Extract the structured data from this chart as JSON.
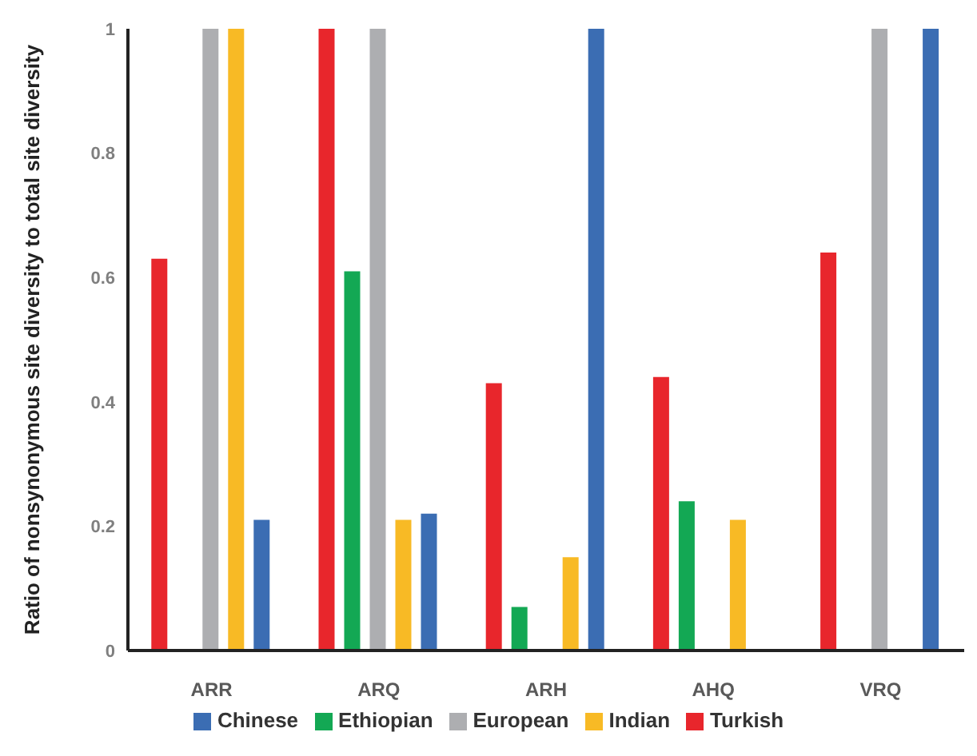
{
  "chart_data": {
    "type": "bar",
    "ylabel": "Ratio of nonsynonymous site diversity to total site diversity",
    "categories": [
      "ARR",
      "ARQ",
      "ARH",
      "AHQ",
      "VRQ"
    ],
    "series": [
      {
        "name": "Turkish",
        "color": "#e8262c",
        "values": [
          0.63,
          1,
          0.43,
          0.44,
          0.64
        ]
      },
      {
        "name": "Ethiopian",
        "color": "#13a854",
        "values": [
          null,
          0.61,
          0.07,
          0.24,
          null
        ]
      },
      {
        "name": "European",
        "color": "#adaeb1",
        "values": [
          1,
          1,
          null,
          null,
          1
        ]
      },
      {
        "name": "Indian",
        "color": "#f8ba25",
        "values": [
          1,
          0.21,
          0.15,
          0.21,
          null
        ]
      },
      {
        "name": "Chinese",
        "color": "#3b6db3",
        "values": [
          0.21,
          0.22,
          1,
          null,
          1
        ]
      }
    ],
    "ylim": [
      0,
      1
    ],
    "yticks": [
      0,
      0.2,
      0.4,
      0.6,
      0.8,
      1
    ],
    "grid": false,
    "legend": "bottom"
  }
}
